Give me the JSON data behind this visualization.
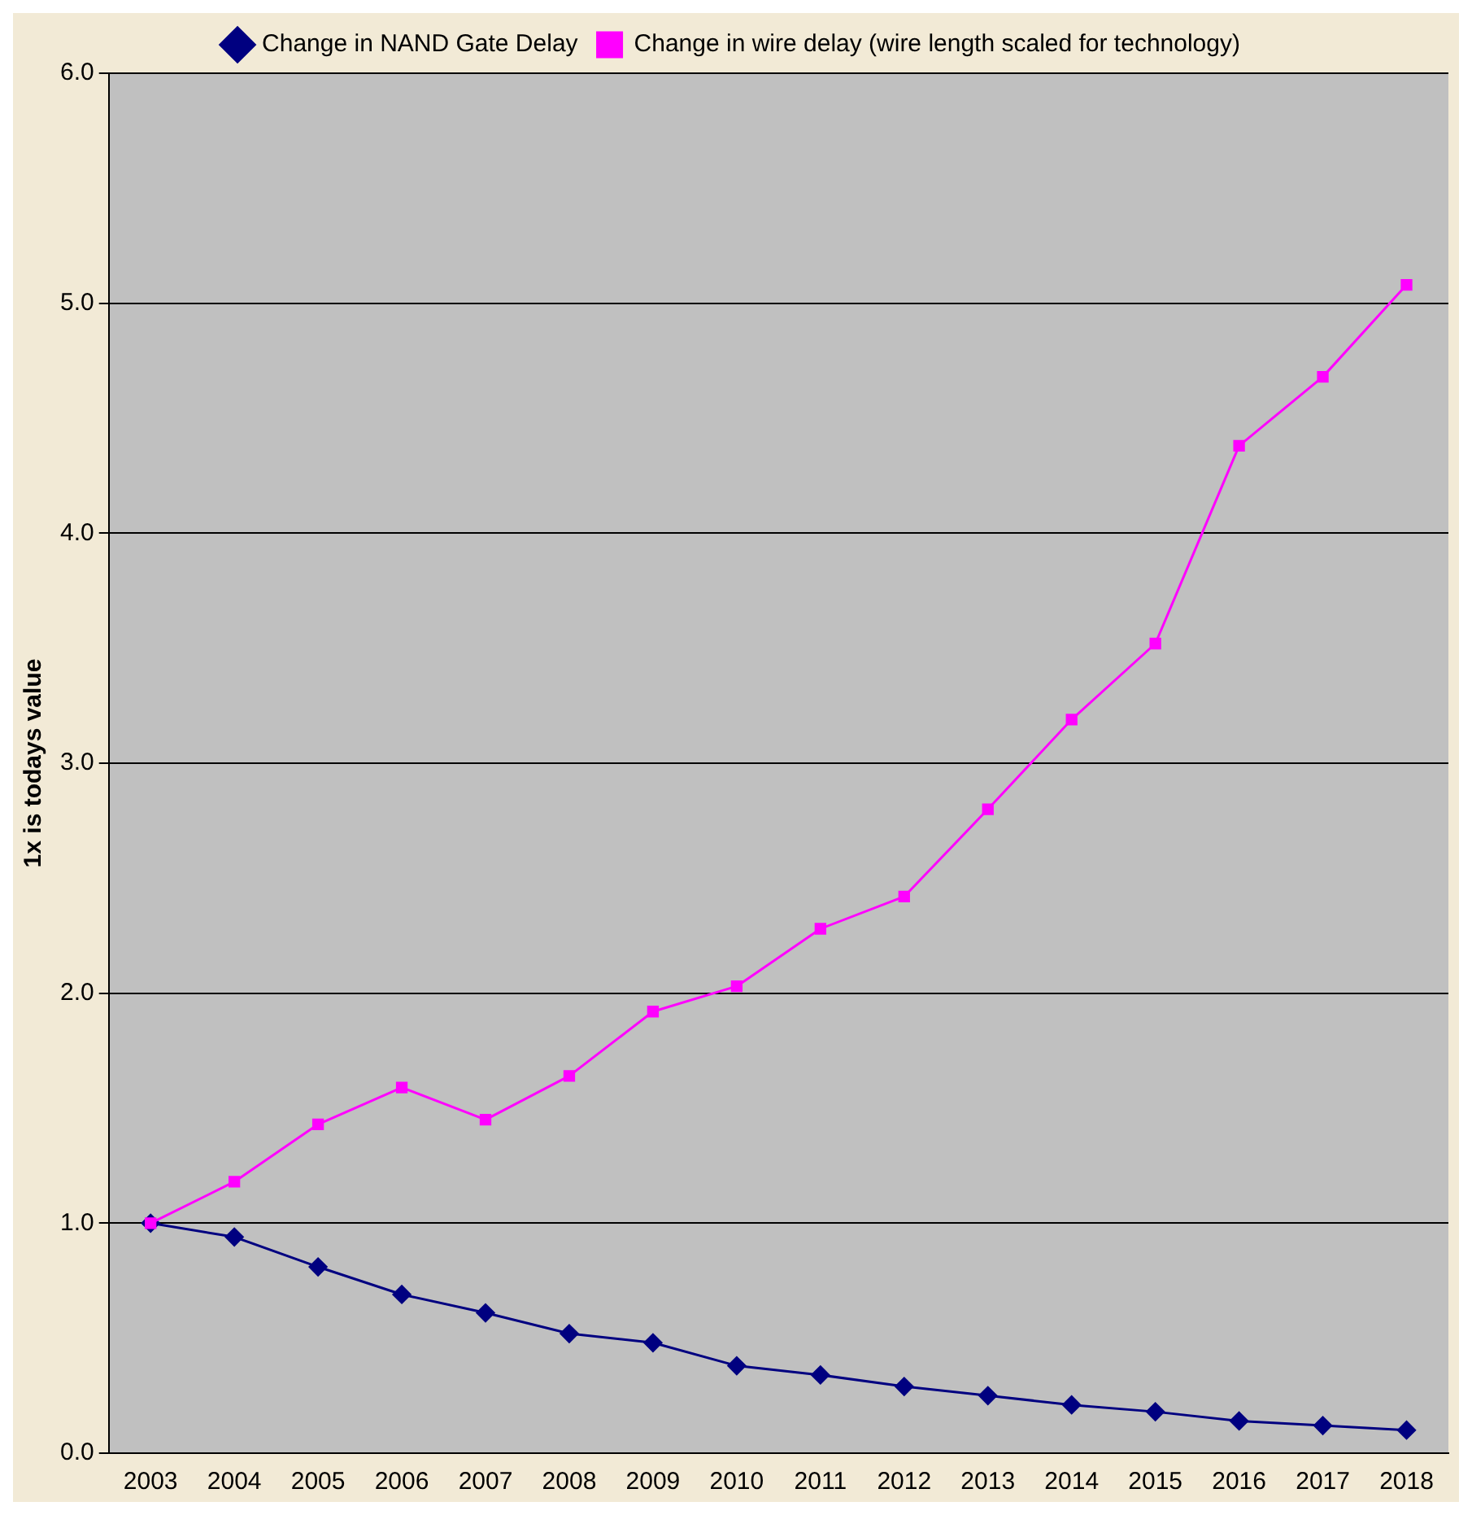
{
  "chart_data": {
    "type": "line",
    "ylabel": "1x is todays value",
    "categories": [
      "2003",
      "2004",
      "2005",
      "2006",
      "2007",
      "2008",
      "2009",
      "2010",
      "2011",
      "2012",
      "2013",
      "2014",
      "2015",
      "2016",
      "2017",
      "2018"
    ],
    "series": [
      {
        "name": "Change in NAND Gate Delay",
        "color": "#000080",
        "marker": "diamond",
        "values": [
          1.0,
          0.94,
          0.81,
          0.69,
          0.61,
          0.52,
          0.48,
          0.38,
          0.34,
          0.29,
          0.25,
          0.21,
          0.18,
          0.14,
          0.12,
          0.1
        ]
      },
      {
        "name": "Change in wire delay (wire length scaled for technology)",
        "color": "#ff00ff",
        "marker": "square",
        "values": [
          1.0,
          1.18,
          1.43,
          1.59,
          1.45,
          1.64,
          1.92,
          2.03,
          2.28,
          2.42,
          2.8,
          3.19,
          3.52,
          4.38,
          4.68,
          5.08
        ]
      }
    ],
    "ylim": [
      0,
      6
    ],
    "yticks": [
      {
        "value": 0,
        "label": "0.0"
      },
      {
        "value": 1,
        "label": "1.0"
      },
      {
        "value": 2,
        "label": "2.0"
      },
      {
        "value": 3,
        "label": "3.0"
      },
      {
        "value": 4,
        "label": "4.0"
      },
      {
        "value": 5,
        "label": "5.0"
      },
      {
        "value": 6,
        "label": "6.0"
      }
    ],
    "grid": "y",
    "legend": "top",
    "line_style": "solid"
  }
}
